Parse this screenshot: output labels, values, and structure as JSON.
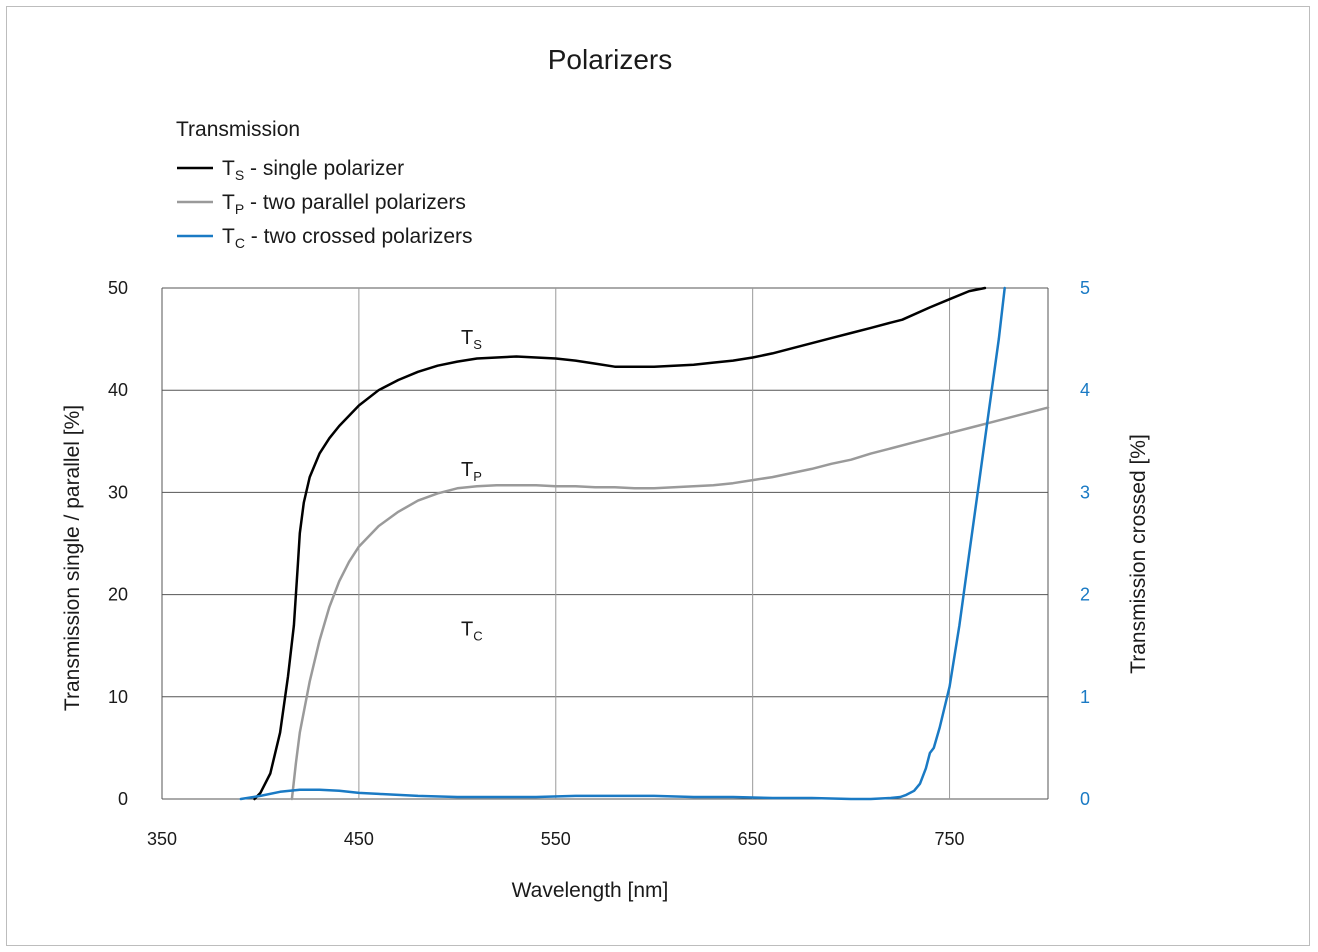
{
  "chart_data": {
    "type": "line",
    "title": "Polarizers",
    "legend_title": "Transmission",
    "legend_placement": "top-left",
    "grid": true,
    "xlabel": "Wavelength [nm]",
    "ylabel_left": "Transmission single / parallel [%]",
    "ylabel_right": "Transmission crossed [%]",
    "xlim": [
      350,
      800
    ],
    "ylim_left": [
      0,
      50
    ],
    "ylim_right": [
      0,
      5
    ],
    "x_ticks": [
      350,
      450,
      550,
      650,
      750
    ],
    "y_ticks_left": [
      0,
      10,
      20,
      30,
      40,
      50
    ],
    "y_ticks_right": [
      0,
      1,
      2,
      3,
      4,
      5
    ],
    "series": [
      {
        "name_main": "T",
        "name_sub": "S",
        "name_rest": " - single polarizer",
        "label_main": "T",
        "label_sub": "S",
        "label_x": 510,
        "label_y": 44.5,
        "color": "#000000",
        "axis": "left",
        "x": [
          397,
          400,
          405,
          410,
          414,
          417,
          418,
          419,
          420,
          422,
          425,
          430,
          435,
          440,
          450,
          460,
          470,
          480,
          490,
          500,
          510,
          520,
          530,
          540,
          550,
          560,
          570,
          580,
          590,
          600,
          610,
          620,
          630,
          640,
          650,
          660,
          670,
          680,
          690,
          700,
          710,
          720,
          726,
          740,
          750,
          760,
          768
        ],
        "y": [
          0,
          0.6,
          2.5,
          6.5,
          12,
          17,
          20,
          23,
          26,
          29,
          31.5,
          33.8,
          35.3,
          36.5,
          38.5,
          40,
          41,
          41.8,
          42.4,
          42.8,
          43.1,
          43.2,
          43.3,
          43.2,
          43.1,
          42.9,
          42.6,
          42.3,
          42.3,
          42.3,
          42.4,
          42.5,
          42.7,
          42.9,
          43.2,
          43.6,
          44.1,
          44.6,
          45.1,
          45.6,
          46.1,
          46.6,
          46.9,
          48.1,
          48.9,
          49.7,
          50
        ]
      },
      {
        "name_main": "T",
        "name_sub": "P",
        "name_rest": " - two parallel polarizers",
        "label_main": "T",
        "label_sub": "P",
        "label_x": 510,
        "label_y": 31.6,
        "color": "#9a9a9a",
        "axis": "left",
        "x": [
          416,
          418,
          420,
          425,
          430,
          435,
          440,
          445,
          450,
          460,
          470,
          480,
          490,
          500,
          510,
          520,
          530,
          540,
          550,
          560,
          570,
          580,
          590,
          600,
          610,
          620,
          630,
          640,
          650,
          660,
          670,
          680,
          690,
          700,
          710,
          720,
          730,
          740,
          750,
          760,
          770,
          780,
          790,
          800
        ],
        "y": [
          0,
          3.5,
          6.5,
          11.5,
          15.5,
          18.8,
          21.3,
          23.2,
          24.7,
          26.7,
          28.1,
          29.2,
          29.9,
          30.4,
          30.6,
          30.7,
          30.7,
          30.7,
          30.6,
          30.6,
          30.5,
          30.5,
          30.4,
          30.4,
          30.5,
          30.6,
          30.7,
          30.9,
          31.2,
          31.5,
          31.9,
          32.3,
          32.8,
          33.2,
          33.8,
          34.3,
          34.8,
          35.3,
          35.8,
          36.3,
          36.8,
          37.3,
          37.8,
          38.3
        ]
      },
      {
        "name_main": "T",
        "name_sub": "C",
        "name_rest": " - two crossed polarizers",
        "label_main": "T",
        "label_sub": "C",
        "label_x": 510,
        "label_y": 1.6,
        "color": "#1a7ac4",
        "axis": "right",
        "x": [
          390,
          400,
          410,
          420,
          425,
          430,
          440,
          450,
          460,
          480,
          500,
          520,
          540,
          560,
          580,
          600,
          620,
          640,
          660,
          680,
          700,
          710,
          720,
          725,
          728,
          732,
          735,
          738,
          740,
          742,
          745,
          750,
          755,
          760,
          765,
          770,
          775,
          778
        ],
        "y": [
          0,
          0.03,
          0.07,
          0.09,
          0.09,
          0.09,
          0.08,
          0.06,
          0.05,
          0.03,
          0.02,
          0.02,
          0.02,
          0.03,
          0.03,
          0.03,
          0.02,
          0.02,
          0.01,
          0.01,
          0.0,
          0.0,
          0.01,
          0.02,
          0.04,
          0.08,
          0.15,
          0.3,
          0.45,
          0.5,
          0.7,
          1.1,
          1.7,
          2.4,
          3.1,
          3.8,
          4.5,
          5.0
        ]
      }
    ]
  }
}
